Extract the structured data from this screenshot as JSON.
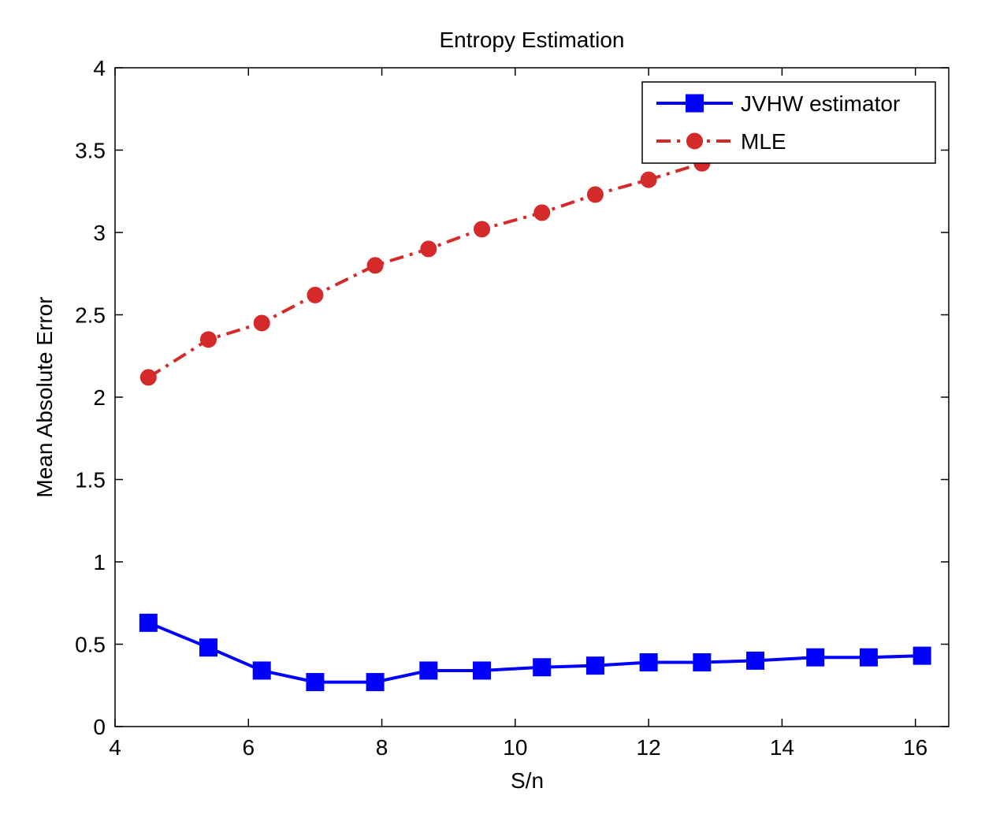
{
  "chart_data": {
    "type": "line",
    "title": "Entropy Estimation",
    "xlabel": "S/n",
    "ylabel": "Mean Absolute Error",
    "xlim": [
      4,
      16.5
    ],
    "ylim": [
      0,
      4
    ],
    "xticks": [
      4,
      6,
      8,
      10,
      12,
      14,
      16
    ],
    "yticks": [
      0,
      0.5,
      1,
      1.5,
      2,
      2.5,
      3,
      3.5,
      4
    ],
    "grid": false,
    "legend_position": "top-right",
    "series": [
      {
        "name": "JVHW estimator",
        "color": "#0000ff",
        "line_style": "solid",
        "marker": "square",
        "x": [
          4.5,
          5.4,
          6.2,
          7.0,
          7.9,
          8.7,
          9.5,
          10.4,
          11.2,
          12.0,
          12.8,
          13.6,
          14.5,
          15.3,
          16.1
        ],
        "y": [
          0.63,
          0.48,
          0.34,
          0.27,
          0.27,
          0.34,
          0.34,
          0.36,
          0.37,
          0.39,
          0.39,
          0.4,
          0.42,
          0.42,
          0.43
        ]
      },
      {
        "name": "MLE",
        "color": "#d42a2a",
        "line_style": "dash-dot",
        "marker": "circle",
        "x": [
          4.5,
          5.4,
          6.2,
          7.0,
          7.9,
          8.7,
          9.5,
          10.4,
          11.2,
          12.0,
          12.8,
          13.6,
          14.5,
          15.3,
          16.1
        ],
        "y": [
          2.12,
          2.35,
          2.45,
          2.62,
          2.8,
          2.9,
          3.02,
          3.12,
          3.23,
          3.32,
          3.42,
          3.52,
          3.62,
          3.72,
          3.82
        ]
      }
    ]
  }
}
